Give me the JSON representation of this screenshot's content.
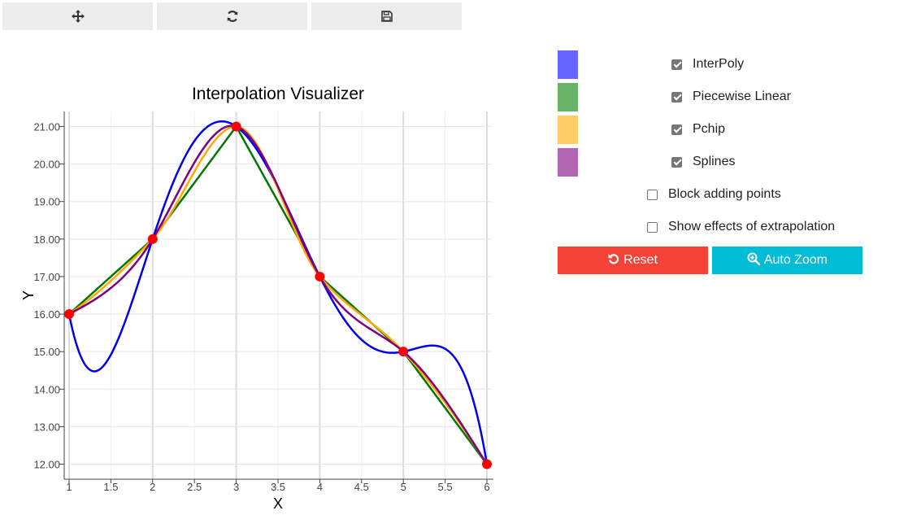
{
  "toolbar": {
    "icons": [
      "move-icon",
      "refresh-icon",
      "save-icon"
    ]
  },
  "controls": {
    "series": [
      {
        "label": "InterPoly",
        "color": "#6666ff",
        "checked": true
      },
      {
        "label": "Piecewise Linear",
        "color": "#66b366",
        "checked": true
      },
      {
        "label": "Pchip",
        "color": "#ffcc66",
        "checked": true
      },
      {
        "label": "Splines",
        "color": "#b366b3",
        "checked": true
      }
    ],
    "options": [
      {
        "label": "Block adding points",
        "checked": false
      },
      {
        "label": "Show effects of extrapolation",
        "checked": false
      }
    ],
    "reset_label": "Reset",
    "autozoom_label": "Auto Zoom",
    "reset_color": "#f44336",
    "autozoom_color": "#00bcd4"
  },
  "chart_data": {
    "type": "line",
    "title": "Interpolation Visualizer",
    "xlabel": "X",
    "ylabel": "Y",
    "xlim": [
      1,
      6
    ],
    "ylim": [
      11.6,
      21.4
    ],
    "xticks": [
      "1",
      "1.5",
      "2",
      "2.5",
      "3",
      "3.5",
      "4",
      "4.5",
      "5",
      "5.5",
      "6"
    ],
    "yticks": [
      "12.00",
      "13.00",
      "14.00",
      "15.00",
      "16.00",
      "17.00",
      "18.00",
      "19.00",
      "20.00",
      "21.00"
    ],
    "grid": true,
    "points": {
      "x": [
        1,
        2,
        3,
        4,
        5,
        6
      ],
      "y": [
        16,
        18,
        21,
        17,
        15,
        12
      ],
      "color": "#ff0000"
    },
    "series": [
      {
        "method": "interpoly",
        "color": "#0000ee"
      },
      {
        "method": "linear",
        "color": "#007700"
      },
      {
        "method": "pchip",
        "color": "#ffaa00"
      },
      {
        "method": "spline",
        "color": "#800080"
      }
    ]
  }
}
